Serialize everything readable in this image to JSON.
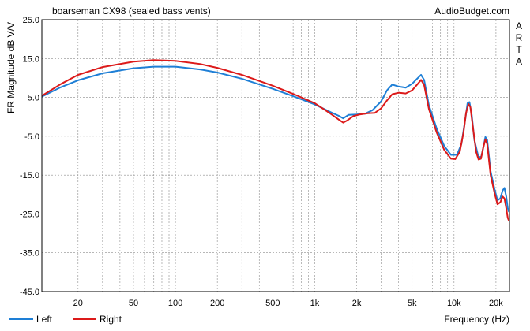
{
  "chart_data": {
    "type": "line",
    "title": "boarseman CX98 (sealed bass vents)",
    "source_label": "AudioBudget.com",
    "side_label": [
      "A",
      "R",
      "T",
      "A"
    ],
    "ylabel": "FR Magnitude dB V/V",
    "xlabel": "Frequency (Hz)",
    "x_scale": "log",
    "xlim": [
      11,
      25000
    ],
    "ylim": [
      -45,
      25
    ],
    "x_ticks": [
      {
        "value": 20,
        "label": "20"
      },
      {
        "value": 50,
        "label": "50"
      },
      {
        "value": 100,
        "label": "100"
      },
      {
        "value": 200,
        "label": "200"
      },
      {
        "value": 500,
        "label": "500"
      },
      {
        "value": 1000,
        "label": "1k"
      },
      {
        "value": 2000,
        "label": "2k"
      },
      {
        "value": 5000,
        "label": "5k"
      },
      {
        "value": 10000,
        "label": "10k"
      },
      {
        "value": 20000,
        "label": "20k"
      }
    ],
    "y_ticks": [
      {
        "value": 25,
        "label": "25.0"
      },
      {
        "value": 15,
        "label": "15.0"
      },
      {
        "value": 5,
        "label": "5.0"
      },
      {
        "value": -5,
        "label": "-5.0"
      },
      {
        "value": -15,
        "label": "-15.0"
      },
      {
        "value": -25,
        "label": "-25.0"
      },
      {
        "value": -35,
        "label": "-35.0"
      },
      {
        "value": -45,
        "label": "-45.0"
      }
    ],
    "grid": true,
    "legend_position": "bottom-left",
    "series": [
      {
        "name": "Left",
        "color": "#1e7fd6",
        "points": [
          [
            11,
            5.2
          ],
          [
            15,
            7.6
          ],
          [
            20,
            9.4
          ],
          [
            30,
            11.2
          ],
          [
            50,
            12.5
          ],
          [
            70,
            12.9
          ],
          [
            100,
            12.9
          ],
          [
            150,
            12.2
          ],
          [
            200,
            11.4
          ],
          [
            300,
            9.8
          ],
          [
            500,
            7.2
          ],
          [
            700,
            5.3
          ],
          [
            1000,
            3.2
          ],
          [
            1300,
            1.2
          ],
          [
            1500,
            0.2
          ],
          [
            1600,
            -0.4
          ],
          [
            1750,
            0.5
          ],
          [
            2000,
            0.6
          ],
          [
            2300,
            0.8
          ],
          [
            2600,
            1.7
          ],
          [
            3000,
            4.0
          ],
          [
            3300,
            6.8
          ],
          [
            3600,
            8.3
          ],
          [
            4000,
            7.8
          ],
          [
            4500,
            7.5
          ],
          [
            5000,
            8.5
          ],
          [
            5500,
            10.0
          ],
          [
            5800,
            10.8
          ],
          [
            6100,
            9.5
          ],
          [
            6600,
            3.0
          ],
          [
            7500,
            -3.0
          ],
          [
            8500,
            -7.5
          ],
          [
            9500,
            -9.8
          ],
          [
            10500,
            -9.8
          ],
          [
            11300,
            -7.0
          ],
          [
            12000,
            -1.0
          ],
          [
            12500,
            3.5
          ],
          [
            12900,
            3.8
          ],
          [
            13400,
            0.5
          ],
          [
            14000,
            -6.0
          ],
          [
            15000,
            -10.5
          ],
          [
            15700,
            -10.2
          ],
          [
            16300,
            -7.5
          ],
          [
            16800,
            -5.2
          ],
          [
            17300,
            -6.0
          ],
          [
            18300,
            -14.0
          ],
          [
            19500,
            -18.5
          ],
          [
            20500,
            -21.5
          ],
          [
            21500,
            -21.0
          ],
          [
            22300,
            -19.0
          ],
          [
            23000,
            -18.3
          ],
          [
            23700,
            -20.5
          ],
          [
            24300,
            -23.5
          ],
          [
            24800,
            -24.5
          ]
        ]
      },
      {
        "name": "Right",
        "color": "#dc1a1a",
        "points": [
          [
            11,
            5.4
          ],
          [
            15,
            8.4
          ],
          [
            20,
            10.8
          ],
          [
            30,
            12.8
          ],
          [
            50,
            14.2
          ],
          [
            70,
            14.6
          ],
          [
            100,
            14.4
          ],
          [
            150,
            13.6
          ],
          [
            200,
            12.6
          ],
          [
            300,
            10.8
          ],
          [
            500,
            8.0
          ],
          [
            700,
            5.9
          ],
          [
            1000,
            3.5
          ],
          [
            1300,
            0.8
          ],
          [
            1500,
            -0.8
          ],
          [
            1600,
            -1.5
          ],
          [
            1700,
            -1.0
          ],
          [
            1900,
            0.2
          ],
          [
            2100,
            0.6
          ],
          [
            2400,
            0.9
          ],
          [
            2700,
            1.0
          ],
          [
            3000,
            2.2
          ],
          [
            3300,
            4.2
          ],
          [
            3600,
            5.8
          ],
          [
            4000,
            6.2
          ],
          [
            4500,
            6.0
          ],
          [
            5000,
            6.8
          ],
          [
            5500,
            8.5
          ],
          [
            5800,
            9.5
          ],
          [
            6100,
            8.2
          ],
          [
            6600,
            2.0
          ],
          [
            7500,
            -4.0
          ],
          [
            8500,
            -8.5
          ],
          [
            9500,
            -10.8
          ],
          [
            10200,
            -10.9
          ],
          [
            11000,
            -9.0
          ],
          [
            11700,
            -4.0
          ],
          [
            12200,
            1.0
          ],
          [
            12700,
            3.3
          ],
          [
            13100,
            2.5
          ],
          [
            13700,
            -3.0
          ],
          [
            14400,
            -9.0
          ],
          [
            15000,
            -11.0
          ],
          [
            15600,
            -10.8
          ],
          [
            16200,
            -8.0
          ],
          [
            16800,
            -5.8
          ],
          [
            17300,
            -7.0
          ],
          [
            18300,
            -15.0
          ],
          [
            19500,
            -19.5
          ],
          [
            20500,
            -22.5
          ],
          [
            21500,
            -22.0
          ],
          [
            22300,
            -20.5
          ],
          [
            23000,
            -21.0
          ],
          [
            23700,
            -23.5
          ],
          [
            24300,
            -26.0
          ],
          [
            24800,
            -26.8
          ]
        ]
      }
    ]
  }
}
